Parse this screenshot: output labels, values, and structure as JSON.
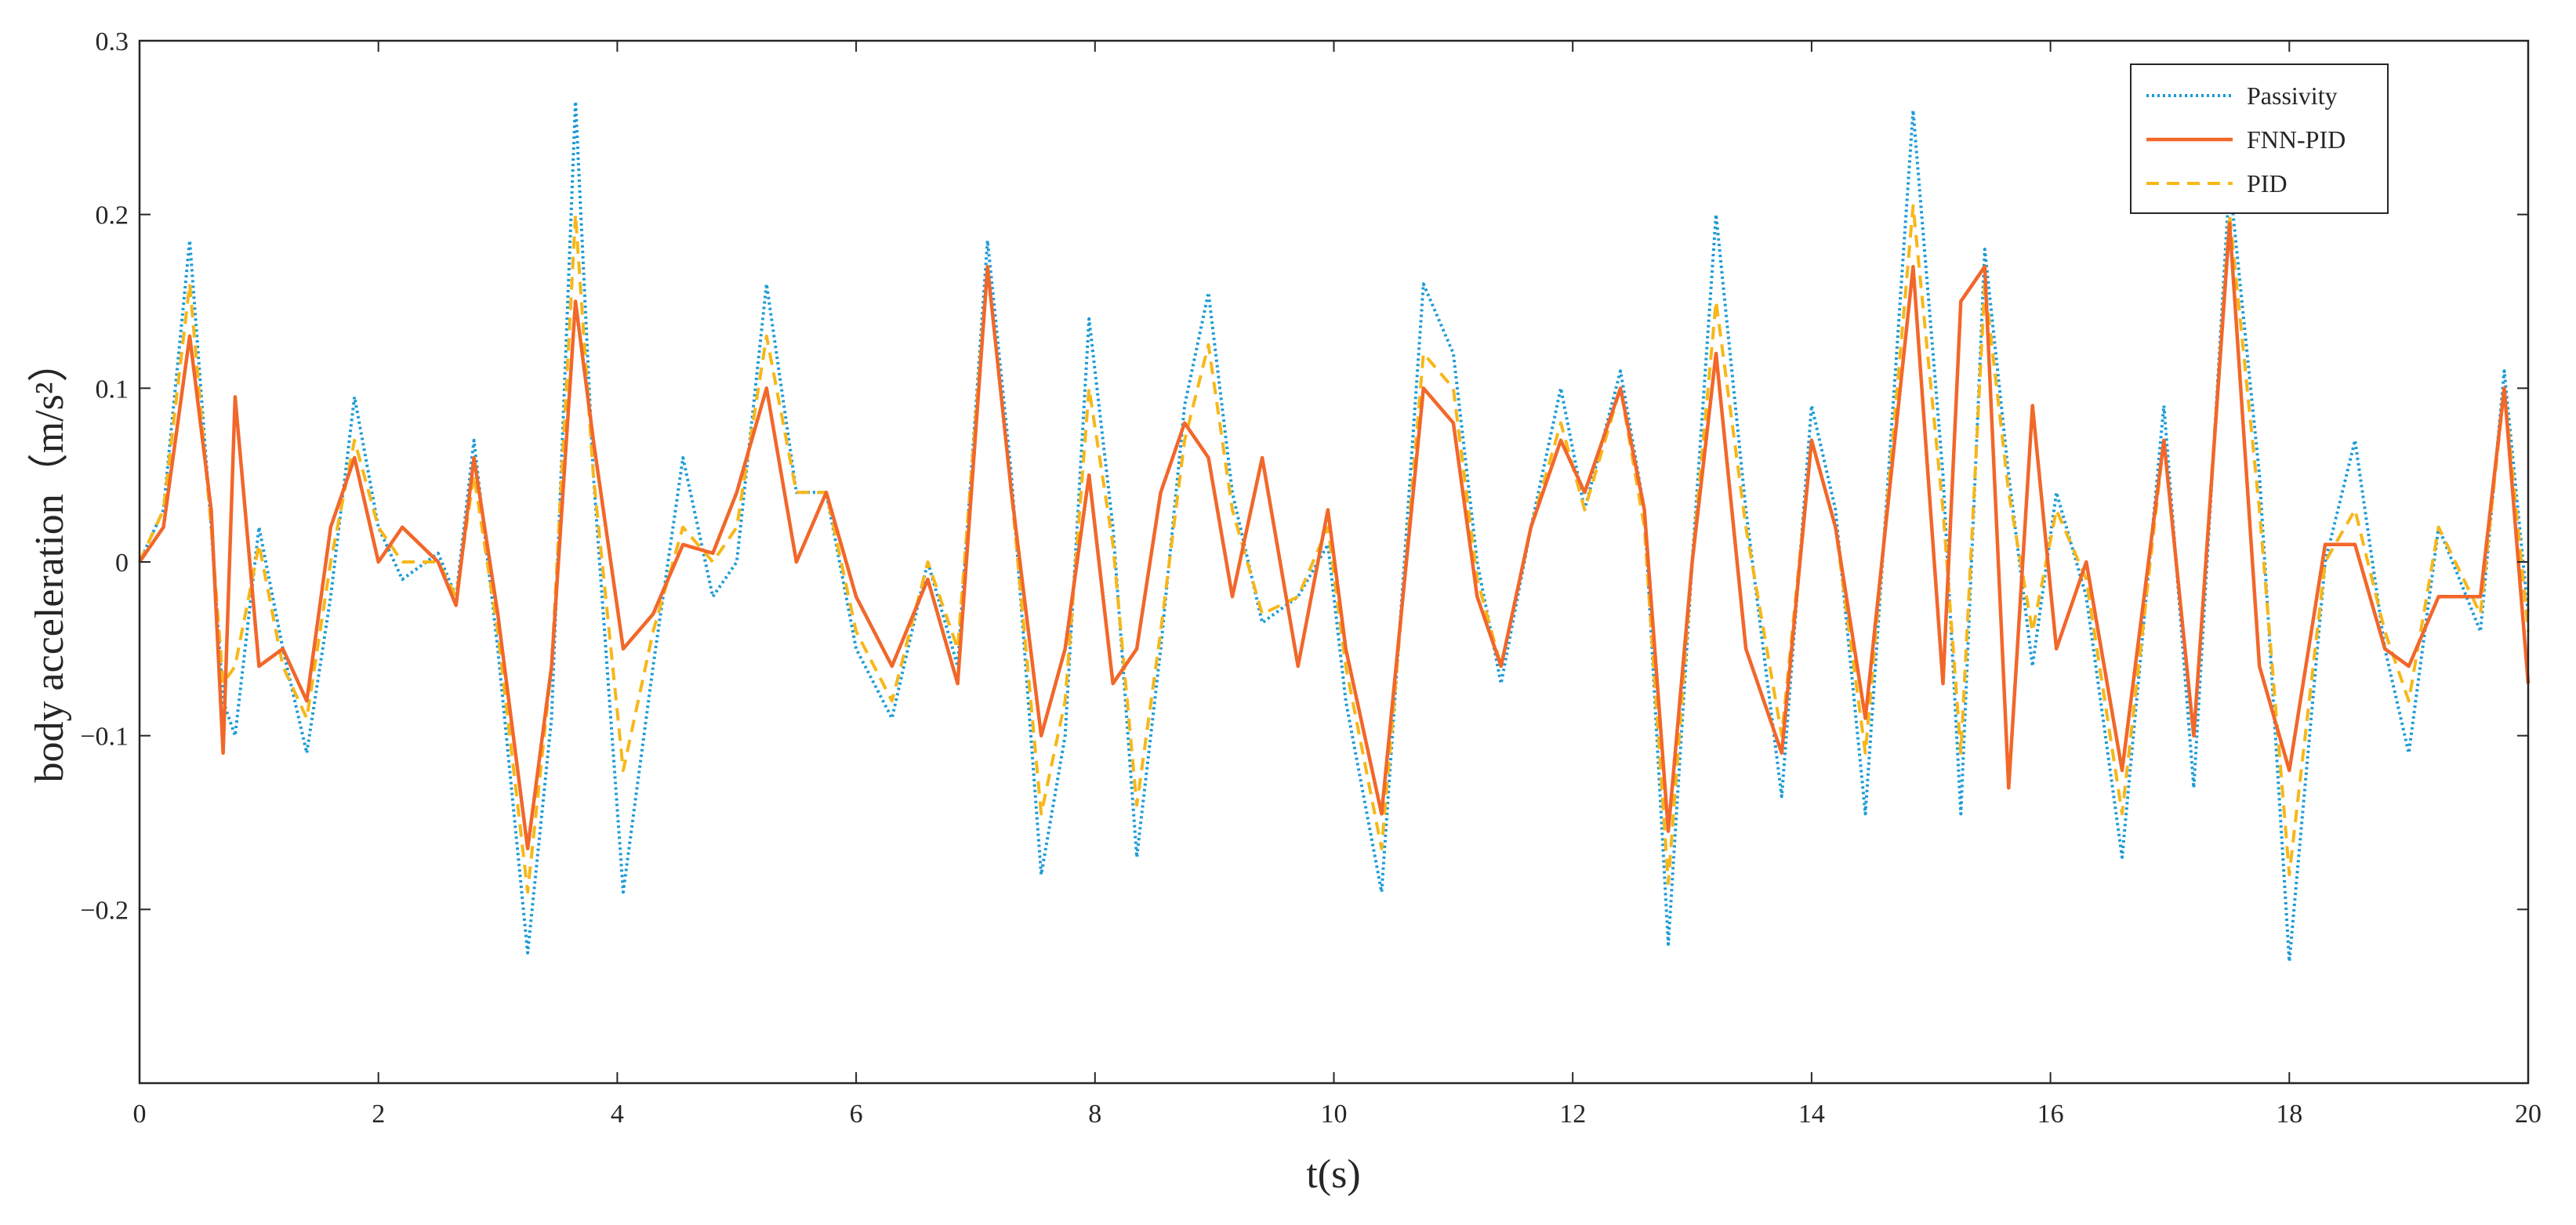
{
  "chart_data": {
    "type": "line",
    "xlabel": "t(s)",
    "ylabel": "body acceleration（m/s²）",
    "xlim": [
      0,
      20
    ],
    "ylim": [
      -0.3,
      0.3
    ],
    "x_ticks": [
      "0",
      "2",
      "4",
      "6",
      "8",
      "10",
      "12",
      "14",
      "16",
      "18",
      "20"
    ],
    "y_ticks": [
      "−0.2",
      "−0.1",
      "0",
      "0.1",
      "0.2",
      "0.3"
    ],
    "grid": false,
    "legend_position": "top-right",
    "legend": [
      "Passivity",
      "FNN-PID",
      "PID"
    ],
    "x": [
      0,
      0.2,
      0.42,
      0.6,
      0.7,
      0.8,
      1.0,
      1.2,
      1.4,
      1.6,
      1.8,
      2.0,
      2.2,
      2.5,
      2.65,
      2.8,
      3.0,
      3.25,
      3.45,
      3.65,
      3.8,
      4.05,
      4.3,
      4.55,
      4.8,
      5.0,
      5.25,
      5.5,
      5.75,
      6.0,
      6.3,
      6.6,
      6.85,
      7.1,
      7.3,
      7.55,
      7.75,
      7.95,
      8.15,
      8.35,
      8.55,
      8.75,
      8.95,
      9.15,
      9.4,
      9.7,
      9.95,
      10.1,
      10.4,
      10.75,
      11.0,
      11.2,
      11.4,
      11.65,
      11.9,
      12.1,
      12.4,
      12.6,
      12.8,
      13.0,
      13.2,
      13.45,
      13.75,
      14.0,
      14.2,
      14.45,
      14.85,
      15.1,
      15.25,
      15.45,
      15.65,
      15.85,
      16.05,
      16.3,
      16.6,
      16.95,
      17.2,
      17.5,
      17.75,
      18.0,
      18.3,
      18.55,
      18.8,
      19.0,
      19.25,
      19.6,
      19.8,
      20.0
    ],
    "series": [
      {
        "name": "Passivity",
        "color": "#1a9bd7",
        "style": "dotted",
        "values": [
          0,
          0.03,
          0.185,
          0.02,
          -0.08,
          -0.1,
          0.02,
          -0.05,
          -0.11,
          -0.02,
          0.095,
          0.02,
          -0.01,
          0.005,
          -0.02,
          0.07,
          -0.05,
          -0.225,
          -0.09,
          0.265,
          0.05,
          -0.19,
          -0.06,
          0.06,
          -0.02,
          0.0,
          0.16,
          0.04,
          0.04,
          -0.05,
          -0.09,
          0.0,
          -0.06,
          0.185,
          0.05,
          -0.18,
          -0.1,
          0.14,
          0.02,
          -0.17,
          -0.05,
          0.09,
          0.155,
          0.04,
          -0.035,
          -0.02,
          0.01,
          -0.08,
          -0.19,
          0.16,
          0.12,
          0.0,
          -0.07,
          0.02,
          0.1,
          0.03,
          0.11,
          0.03,
          -0.22,
          0.0,
          0.2,
          0.03,
          -0.135,
          0.09,
          0.03,
          -0.145,
          0.26,
          0.05,
          -0.145,
          0.18,
          0.05,
          -0.06,
          0.04,
          -0.02,
          -0.17,
          0.09,
          -0.13,
          0.22,
          0.05,
          -0.23,
          0.0,
          0.07,
          -0.05,
          -0.11,
          0.02,
          -0.04,
          0.11,
          -0.03
        ]
      },
      {
        "name": "FNN-PID",
        "color": "#f2672a",
        "style": "solid",
        "values": [
          0,
          0.02,
          0.13,
          0.03,
          -0.11,
          0.095,
          -0.06,
          -0.05,
          -0.08,
          0.02,
          0.06,
          0.0,
          0.02,
          0.0,
          -0.025,
          0.06,
          -0.03,
          -0.165,
          -0.06,
          0.15,
          0.07,
          -0.05,
          -0.03,
          0.01,
          0.005,
          0.04,
          0.1,
          0.0,
          0.04,
          -0.02,
          -0.06,
          -0.01,
          -0.07,
          0.17,
          0.04,
          -0.1,
          -0.05,
          0.05,
          -0.07,
          -0.05,
          0.04,
          0.08,
          0.06,
          -0.02,
          0.06,
          -0.06,
          0.03,
          -0.05,
          -0.145,
          0.1,
          0.08,
          -0.02,
          -0.06,
          0.02,
          0.07,
          0.04,
          0.1,
          0.03,
          -0.155,
          0.0,
          0.12,
          -0.05,
          -0.11,
          0.07,
          0.02,
          -0.09,
          0.17,
          -0.07,
          0.15,
          0.17,
          -0.13,
          0.09,
          -0.05,
          0.0,
          -0.12,
          0.07,
          -0.1,
          0.195,
          -0.06,
          -0.12,
          0.01,
          0.01,
          -0.05,
          -0.06,
          -0.02,
          -0.02,
          0.1,
          -0.07
        ]
      },
      {
        "name": "PID",
        "color": "#f7b719",
        "style": "dashed",
        "values": [
          0,
          0.03,
          0.16,
          0.02,
          -0.07,
          -0.06,
          0.01,
          -0.06,
          -0.09,
          0.0,
          0.07,
          0.02,
          0.0,
          0.0,
          -0.02,
          0.05,
          -0.04,
          -0.19,
          -0.06,
          0.2,
          0.05,
          -0.12,
          -0.04,
          0.02,
          0.0,
          0.02,
          0.13,
          0.04,
          0.04,
          -0.04,
          -0.08,
          0.0,
          -0.05,
          0.17,
          0.04,
          -0.145,
          -0.08,
          0.1,
          0.01,
          -0.14,
          -0.04,
          0.07,
          0.125,
          0.03,
          -0.03,
          -0.02,
          0.02,
          -0.06,
          -0.165,
          0.12,
          0.1,
          -0.01,
          -0.06,
          0.02,
          0.08,
          0.03,
          0.1,
          0.02,
          -0.185,
          0.0,
          0.15,
          0.02,
          -0.1,
          0.07,
          0.02,
          -0.11,
          0.205,
          0.03,
          -0.11,
          0.16,
          0.04,
          -0.04,
          0.03,
          -0.01,
          -0.145,
          0.07,
          -0.1,
          0.2,
          0.03,
          -0.18,
          0.0,
          0.03,
          -0.04,
          -0.08,
          0.02,
          -0.03,
          0.1,
          -0.04
        ]
      }
    ]
  }
}
